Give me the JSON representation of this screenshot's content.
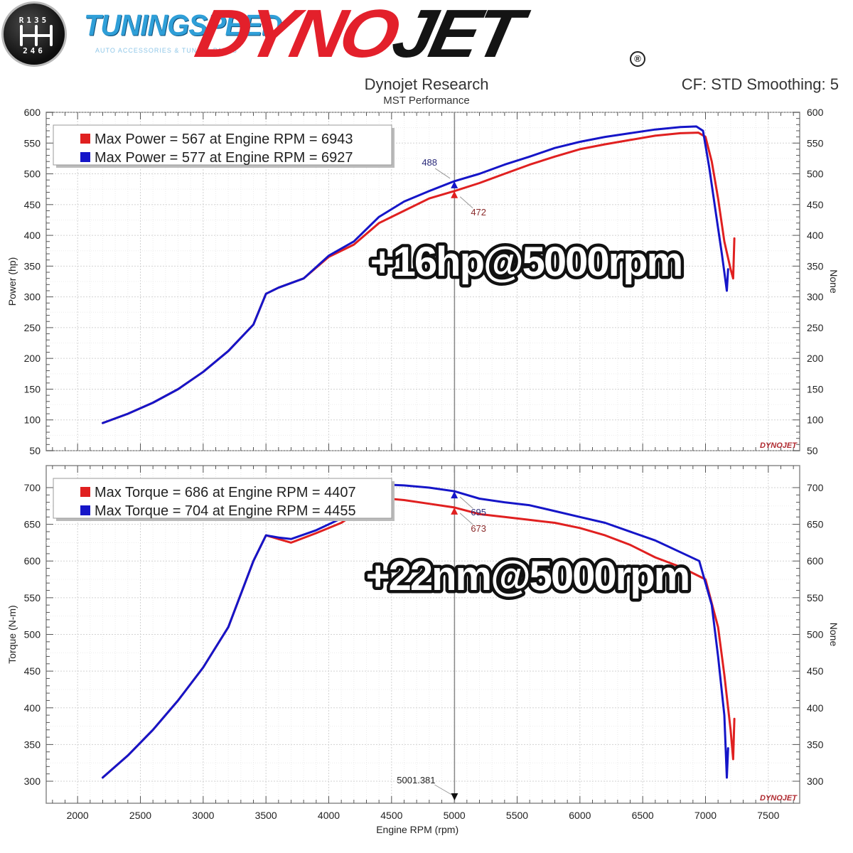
{
  "header": {
    "badge_top": "R135",
    "badge_bottom": "246",
    "brand": "TUNINGSPEED",
    "tagline": "AUTO ACCESSORIES & TUNING PARTS",
    "dyno_logo_red": "DYNO",
    "dyno_logo_black": "JET",
    "registered": "®",
    "title": "Dynojet Research",
    "subtitle": "MST Performance",
    "cf": "CF: STD Smoothing: 5"
  },
  "colors": {
    "red": "#e02020",
    "blue": "#1515c8",
    "dyno_red": "#e3202b",
    "grid": "#d2d2d2",
    "frame": "#8a8a8a"
  },
  "footer": {
    "xlabel": "Engine RPM (rpm)",
    "cursor_label": "5001.381"
  },
  "chart_data": [
    {
      "type": "line",
      "ylabel": "Power (hp)",
      "right_label": "None",
      "xlim": [
        1750,
        7750
      ],
      "ylim": [
        50,
        600
      ],
      "y_ticks": [
        50,
        100,
        150,
        200,
        250,
        300,
        350,
        400,
        450,
        500,
        550,
        600
      ],
      "cursor_x": 5001.381,
      "annotation": "+16hp@5000rpm",
      "watermark": "DYNOJET",
      "legend": [
        {
          "text": "Max Power = 567 at Engine RPM = 6943",
          "color": "#e02020"
        },
        {
          "text": "Max Power = 577 at Engine RPM = 6927",
          "color": "#1515c8"
        }
      ],
      "markers": [
        {
          "label": "488",
          "x": 5000,
          "y": 488,
          "color": "#1515c8",
          "pos": "above"
        },
        {
          "label": "472",
          "x": 5000,
          "y": 472,
          "color": "#e02020",
          "pos": "below"
        }
      ],
      "series": [
        {
          "color": "#e02020",
          "points": [
            [
              2200,
              95
            ],
            [
              2400,
              110
            ],
            [
              2600,
              128
            ],
            [
              2800,
              150
            ],
            [
              3000,
              178
            ],
            [
              3200,
              212
            ],
            [
              3400,
              255
            ],
            [
              3500,
              305
            ],
            [
              3600,
              315
            ],
            [
              3800,
              330
            ],
            [
              4000,
              365
            ],
            [
              4200,
              385
            ],
            [
              4400,
              420
            ],
            [
              4600,
              440
            ],
            [
              4800,
              460
            ],
            [
              5000,
              472
            ],
            [
              5200,
              485
            ],
            [
              5400,
              500
            ],
            [
              5600,
              515
            ],
            [
              5800,
              528
            ],
            [
              6000,
              540
            ],
            [
              6200,
              548
            ],
            [
              6400,
              555
            ],
            [
              6600,
              562
            ],
            [
              6800,
              566
            ],
            [
              6943,
              567
            ],
            [
              7000,
              560
            ],
            [
              7050,
              520
            ],
            [
              7100,
              460
            ],
            [
              7150,
              390
            ],
            [
              7200,
              345
            ],
            [
              7220,
              330
            ],
            [
              7230,
              395
            ]
          ]
        },
        {
          "color": "#1515c8",
          "points": [
            [
              2200,
              95
            ],
            [
              2400,
              110
            ],
            [
              2600,
              128
            ],
            [
              2800,
              150
            ],
            [
              3000,
              178
            ],
            [
              3200,
              212
            ],
            [
              3400,
              255
            ],
            [
              3500,
              305
            ],
            [
              3600,
              315
            ],
            [
              3800,
              330
            ],
            [
              4000,
              367
            ],
            [
              4200,
              390
            ],
            [
              4400,
              430
            ],
            [
              4600,
              455
            ],
            [
              4800,
              472
            ],
            [
              5000,
              488
            ],
            [
              5200,
              500
            ],
            [
              5400,
              515
            ],
            [
              5600,
              528
            ],
            [
              5800,
              542
            ],
            [
              6000,
              552
            ],
            [
              6200,
              560
            ],
            [
              6400,
              566
            ],
            [
              6600,
              572
            ],
            [
              6800,
              576
            ],
            [
              6927,
              577
            ],
            [
              6980,
              570
            ],
            [
              7030,
              510
            ],
            [
              7080,
              440
            ],
            [
              7130,
              370
            ],
            [
              7170,
              310
            ],
            [
              7180,
              345
            ]
          ]
        }
      ]
    },
    {
      "type": "line",
      "ylabel": "Torque (N-m)",
      "right_label": "None",
      "xlabel": "Engine RPM (rpm)",
      "xlim": [
        1750,
        7750
      ],
      "ylim": [
        270,
        730
      ],
      "x_ticks": [
        2000,
        2500,
        3000,
        3500,
        4000,
        4500,
        5000,
        5500,
        6000,
        6500,
        7000,
        7500
      ],
      "y_ticks": [
        300,
        350,
        400,
        450,
        500,
        550,
        600,
        650,
        700
      ],
      "cursor_x": 5001.381,
      "annotation": "+22nm@5000rpm",
      "watermark": "DYNOJET",
      "legend": [
        {
          "text": "Max Torque = 686 at Engine RPM = 4407",
          "color": "#e02020"
        },
        {
          "text": "Max Torque = 704 at Engine RPM = 4455",
          "color": "#1515c8"
        }
      ],
      "markers": [
        {
          "label": "695",
          "x": 5000,
          "y": 695,
          "color": "#1515c8",
          "pos": "below-right"
        },
        {
          "label": "673",
          "x": 5000,
          "y": 673,
          "color": "#e02020",
          "pos": "below"
        }
      ],
      "series": [
        {
          "color": "#e02020",
          "points": [
            [
              2200,
              305
            ],
            [
              2400,
              335
            ],
            [
              2600,
              370
            ],
            [
              2800,
              410
            ],
            [
              3000,
              455
            ],
            [
              3200,
              510
            ],
            [
              3400,
              600
            ],
            [
              3500,
              635
            ],
            [
              3600,
              630
            ],
            [
              3700,
              625
            ],
            [
              3900,
              638
            ],
            [
              4100,
              652
            ],
            [
              4300,
              675
            ],
            [
              4407,
              686
            ],
            [
              4600,
              683
            ],
            [
              4800,
              678
            ],
            [
              5000,
              673
            ],
            [
              5200,
              664
            ],
            [
              5400,
              660
            ],
            [
              5600,
              656
            ],
            [
              5800,
              652
            ],
            [
              6000,
              645
            ],
            [
              6200,
              635
            ],
            [
              6400,
              622
            ],
            [
              6600,
              605
            ],
            [
              6800,
              592
            ],
            [
              7000,
              575
            ],
            [
              7100,
              510
            ],
            [
              7150,
              445
            ],
            [
              7200,
              370
            ],
            [
              7220,
              330
            ],
            [
              7230,
              385
            ]
          ]
        },
        {
          "color": "#1515c8",
          "points": [
            [
              2200,
              305
            ],
            [
              2400,
              335
            ],
            [
              2600,
              370
            ],
            [
              2800,
              410
            ],
            [
              3000,
              455
            ],
            [
              3200,
              510
            ],
            [
              3400,
              600
            ],
            [
              3500,
              635
            ],
            [
              3600,
              632
            ],
            [
              3700,
              630
            ],
            [
              3900,
              642
            ],
            [
              4100,
              658
            ],
            [
              4300,
              684
            ],
            [
              4455,
              704
            ],
            [
              4600,
              703
            ],
            [
              4800,
              700
            ],
            [
              5000,
              695
            ],
            [
              5200,
              685
            ],
            [
              5400,
              680
            ],
            [
              5600,
              676
            ],
            [
              5800,
              668
            ],
            [
              6000,
              660
            ],
            [
              6200,
              652
            ],
            [
              6400,
              640
            ],
            [
              6600,
              628
            ],
            [
              6800,
              612
            ],
            [
              6950,
              600
            ],
            [
              7050,
              540
            ],
            [
              7100,
              470
            ],
            [
              7150,
              390
            ],
            [
              7170,
              305
            ],
            [
              7180,
              345
            ]
          ]
        }
      ]
    }
  ]
}
